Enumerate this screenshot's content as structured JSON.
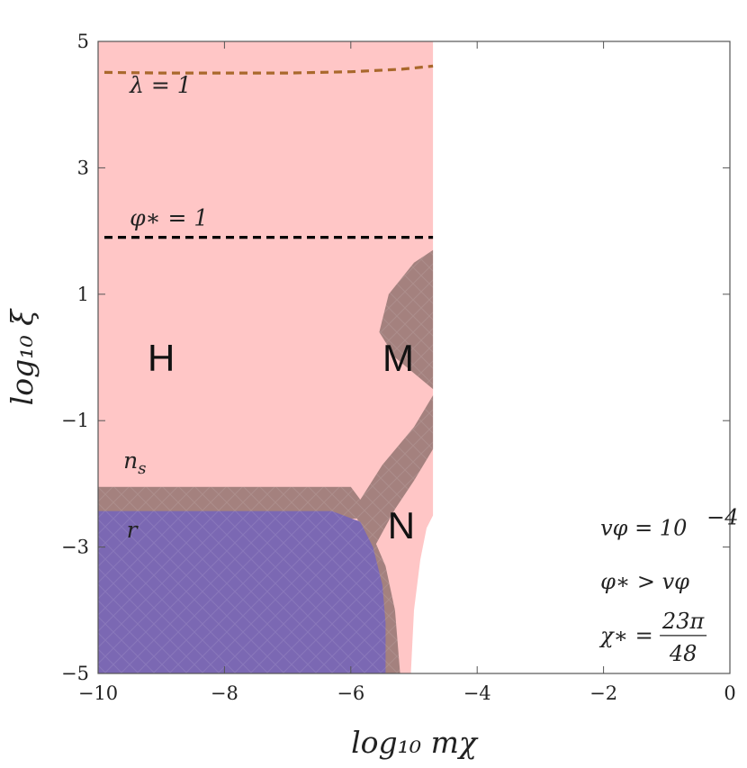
{
  "chart_data": {
    "type": "area",
    "xlabel": "log₁₀ mχ",
    "ylabel": "log₁₀ ξ",
    "xlim": [
      -10,
      0
    ],
    "ylim": [
      -5,
      5
    ],
    "xticks": [
      {
        "value": -10,
        "label": "−10"
      },
      {
        "value": -8,
        "label": "−8"
      },
      {
        "value": -6,
        "label": "−6"
      },
      {
        "value": -4,
        "label": "−4"
      },
      {
        "value": -2,
        "label": "−2"
      },
      {
        "value": 0,
        "label": "0"
      }
    ],
    "yticks": [
      {
        "value": 5,
        "label": "5"
      },
      {
        "value": 3,
        "label": "3"
      },
      {
        "value": 1,
        "label": "1"
      },
      {
        "value": -1,
        "label": "−1"
      },
      {
        "value": -3,
        "label": "−3"
      },
      {
        "value": -5,
        "label": "−5"
      }
    ],
    "grid": false,
    "regions": [
      {
        "name": "H",
        "color": "#ffc6c6",
        "label": "H",
        "label_at": [
          -9.0,
          0.0
        ],
        "polygon": [
          [
            -10,
            5
          ],
          [
            -4.7,
            5
          ],
          [
            -4.7,
            -2.5
          ],
          [
            -4.8,
            -2.7
          ],
          [
            -4.9,
            -3.2
          ],
          [
            -5.0,
            -4.0
          ],
          [
            -5.05,
            -5
          ],
          [
            -10,
            -5
          ]
        ]
      },
      {
        "name": "M",
        "color": "#a4817e",
        "label": "M",
        "label_at": [
          -5.25,
          0.0
        ],
        "polygon": [
          [
            -4.7,
            1.7
          ],
          [
            -5.0,
            1.5
          ],
          [
            -5.4,
            1.0
          ],
          [
            -5.55,
            0.4
          ],
          [
            -5.3,
            0.0
          ],
          [
            -4.7,
            -0.5
          ]
        ]
      },
      {
        "name": "N",
        "color": "#a4817e",
        "label": "N",
        "label_at": [
          -5.2,
          -2.65
        ],
        "polygon": [
          [
            -4.7,
            -0.6
          ],
          [
            -4.7,
            -1.45
          ],
          [
            -5.0,
            -1.95
          ],
          [
            -5.3,
            -2.4
          ],
          [
            -5.6,
            -2.95
          ],
          [
            -5.45,
            -3.3
          ],
          [
            -5.3,
            -4.0
          ],
          [
            -5.22,
            -5
          ],
          [
            -5.48,
            -5
          ],
          [
            -5.55,
            -4.0
          ],
          [
            -5.65,
            -3.2
          ],
          [
            -5.9,
            -2.55
          ],
          [
            -10,
            -2.45
          ],
          [
            -10,
            -2.05
          ],
          [
            -6.0,
            -2.05
          ],
          [
            -5.85,
            -2.25
          ],
          [
            -5.5,
            -1.7
          ],
          [
            -5.0,
            -1.1
          ]
        ]
      },
      {
        "name": "ns",
        "color": "#a4817e",
        "label": "n_s",
        "label_at": [
          -9.6,
          -1.75
        ],
        "polygon": [
          [
            -10,
            -2.05
          ],
          [
            -6.0,
            -2.05
          ],
          [
            -5.85,
            -2.25
          ],
          [
            -5.9,
            -2.55
          ],
          [
            -10,
            -2.45
          ]
        ]
      },
      {
        "name": "r",
        "color": "#7b68b3",
        "label": "r",
        "label_at": [
          -9.55,
          -2.85
        ],
        "polygon": [
          [
            -10,
            -2.43
          ],
          [
            -6.3,
            -2.43
          ],
          [
            -5.85,
            -2.6
          ],
          [
            -5.65,
            -3.0
          ],
          [
            -5.5,
            -3.6
          ],
          [
            -5.45,
            -4.2
          ],
          [
            -5.45,
            -5
          ],
          [
            -10,
            -5
          ]
        ]
      }
    ],
    "curves": [
      {
        "name": "λ=1",
        "label": "λ = 1",
        "style": "dashed",
        "color": "#a9682c",
        "x": [
          -9.9,
          -9,
          -8,
          -7,
          -6,
          -5.2,
          -4.7
        ],
        "y": [
          4.51,
          4.5,
          4.5,
          4.5,
          4.52,
          4.56,
          4.61
        ],
        "label_at": [
          -9.5,
          4.3
        ]
      },
      {
        "name": "φ*=1",
        "label": "φ∗ = 1",
        "style": "dashed",
        "color": "#000000",
        "x": [
          -9.9,
          -4.7
        ],
        "y": [
          1.9,
          1.9
        ],
        "label_at": [
          -9.5,
          2.2
        ]
      }
    ],
    "annotations": [
      {
        "text": "vφ = 10",
        "sup": "−4",
        "at": [
          -2.05,
          -2.7
        ]
      },
      {
        "text": "φ∗ > vφ",
        "at": [
          -2.05,
          -3.55
        ]
      },
      {
        "text": "χ∗ =",
        "frac_num": "23π",
        "frac_den": "48",
        "at": [
          -2.05,
          -4.4
        ]
      }
    ]
  }
}
